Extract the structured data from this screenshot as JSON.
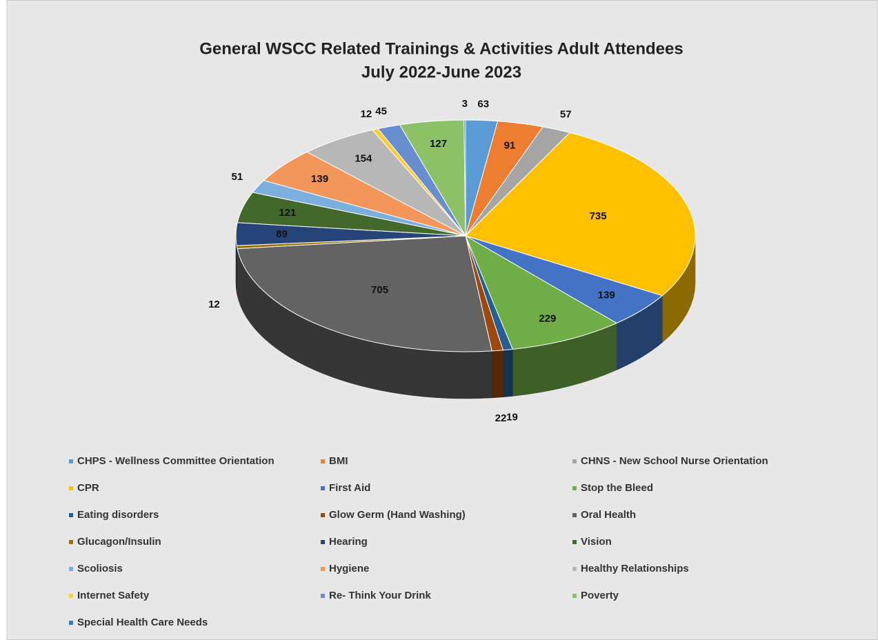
{
  "chart_data": {
    "type": "pie3d",
    "title": "General WSCC Related Trainings & Activities Adult Attendees",
    "subtitle": "July 2022-June 2023",
    "categories": [
      "CHPS - Wellness Committee Orientation",
      "BMI",
      "CHNS - New School Nurse Orientation",
      "CPR",
      "First Aid",
      "Stop the Bleed",
      "Eating disorders",
      "Glow Germ (Hand Washing)",
      "Oral Health",
      "Glucagon/Insulin",
      "Hearing",
      "Vision",
      "Scoliosis",
      "Hygiene",
      "Healthy Relationships",
      "Internet Safety",
      "Re- Think Your Drink",
      "Poverty",
      "Special Health Care Needs"
    ],
    "values": [
      63,
      91,
      57,
      735,
      139,
      229,
      19,
      22,
      705,
      12,
      89,
      121,
      51,
      139,
      154,
      12,
      45,
      127,
      3
    ],
    "colors": [
      "#5B9BD5",
      "#ED7D31",
      "#A5A5A5",
      "#FFC000",
      "#4472C4",
      "#70AD47",
      "#255E91",
      "#9E480E",
      "#636363",
      "#997300",
      "#264478",
      "#43682B",
      "#7CAFDD",
      "#F1975A",
      "#B7B7B7",
      "#FFCD33",
      "#698ED0",
      "#8CC168",
      "#327DC2"
    ],
    "legend": "bottom"
  }
}
